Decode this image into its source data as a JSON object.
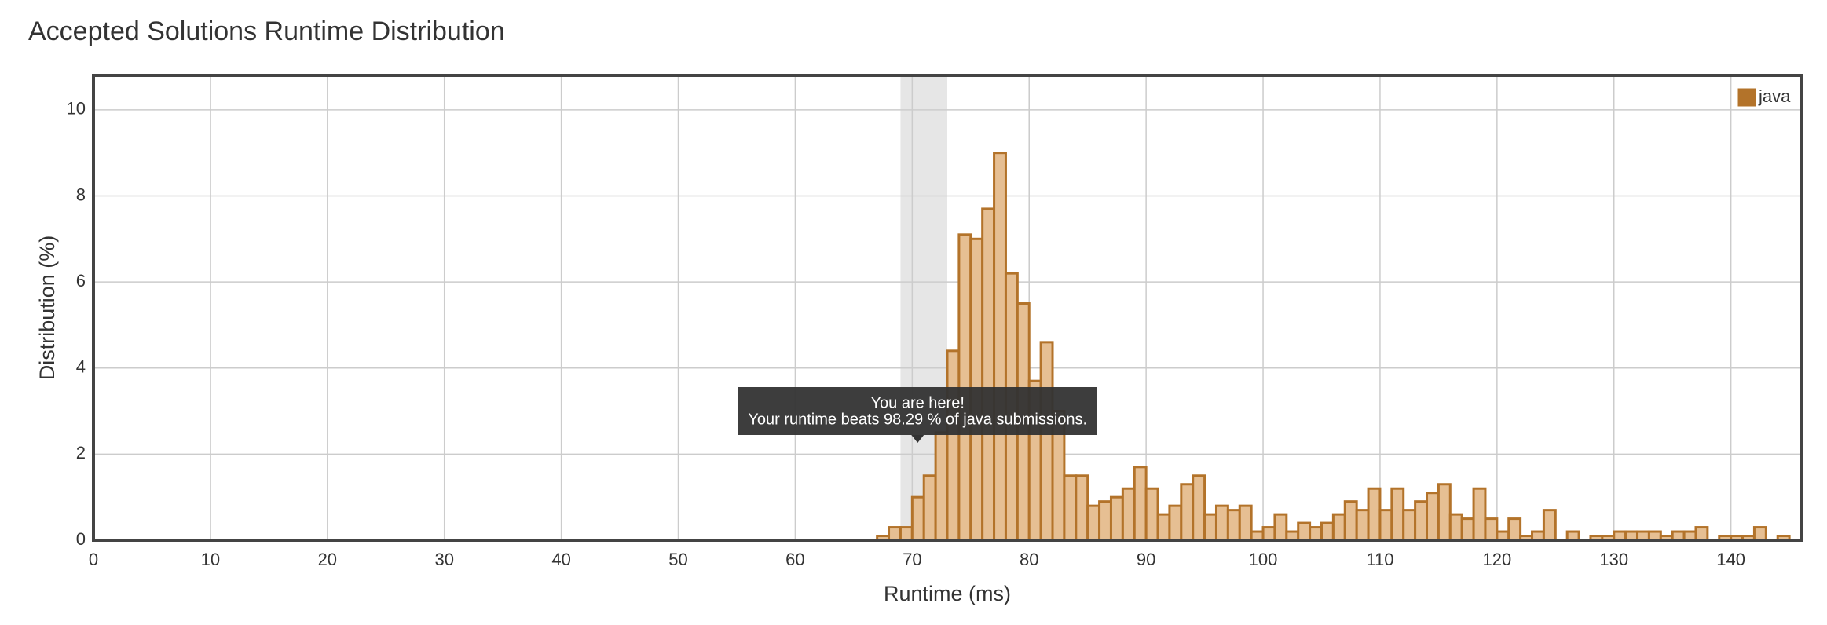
{
  "chart_data": {
    "type": "histogram",
    "title": "Accepted Solutions Runtime Distribution",
    "xlabel": "Runtime (ms)",
    "ylabel": "Distribution (%)",
    "bins": [
      67,
      68,
      69,
      70,
      71,
      72,
      73,
      74,
      75,
      76,
      77,
      78,
      79,
      80,
      81,
      82,
      83,
      84,
      85,
      86,
      87,
      88,
      89,
      90,
      91,
      92,
      93,
      94,
      95,
      96,
      97,
      98,
      99,
      100,
      101,
      102,
      103,
      104,
      105,
      106,
      107,
      108,
      109,
      110,
      111,
      112,
      113,
      114,
      115,
      116,
      117,
      118,
      119,
      120,
      121,
      122,
      123,
      124,
      125,
      126,
      127,
      128,
      129,
      130,
      131,
      132,
      133,
      134,
      135,
      136,
      137,
      138,
      139,
      140,
      141,
      142,
      143,
      144,
      145
    ],
    "series": [
      {
        "name": "java",
        "color": "#b3732a",
        "fill": "#e6bf93",
        "values": [
          0.1,
          0.3,
          0.3,
          1.0,
          1.5,
          2.5,
          4.4,
          7.1,
          7.0,
          7.7,
          9.0,
          6.2,
          5.5,
          3.7,
          4.6,
          3.0,
          1.5,
          1.5,
          0.8,
          0.9,
          1.0,
          1.2,
          1.7,
          1.2,
          0.6,
          0.8,
          1.3,
          1.5,
          0.6,
          0.8,
          0.7,
          0.8,
          0.2,
          0.3,
          0.6,
          0.2,
          0.4,
          0.3,
          0.4,
          0.6,
          0.9,
          0.7,
          1.2,
          0.7,
          1.2,
          0.7,
          0.9,
          1.1,
          1.3,
          0.6,
          0.5,
          1.2,
          0.5,
          0.2,
          0.5,
          0.1,
          0.2,
          0.7,
          0,
          0.2,
          0,
          0.1,
          0.1,
          0.2,
          0.2,
          0.2,
          0.2,
          0.1,
          0.2,
          0.2,
          0.3,
          0,
          0.1,
          0.1,
          0.1,
          0.3,
          0,
          0.1
        ]
      }
    ],
    "xlim": [
      0,
      146
    ],
    "ylim": [
      0,
      10.8
    ],
    "xticks": [
      0,
      10,
      20,
      30,
      40,
      50,
      60,
      70,
      80,
      90,
      100,
      110,
      120,
      130,
      140
    ],
    "yticks": [
      0,
      2,
      4,
      6,
      8,
      10
    ],
    "grid": true,
    "legend": "top-right",
    "highlight": [
      69,
      73
    ],
    "tooltip": {
      "title": "You are here!",
      "text": "Your runtime beats 98.29 % of java submissions."
    }
  }
}
